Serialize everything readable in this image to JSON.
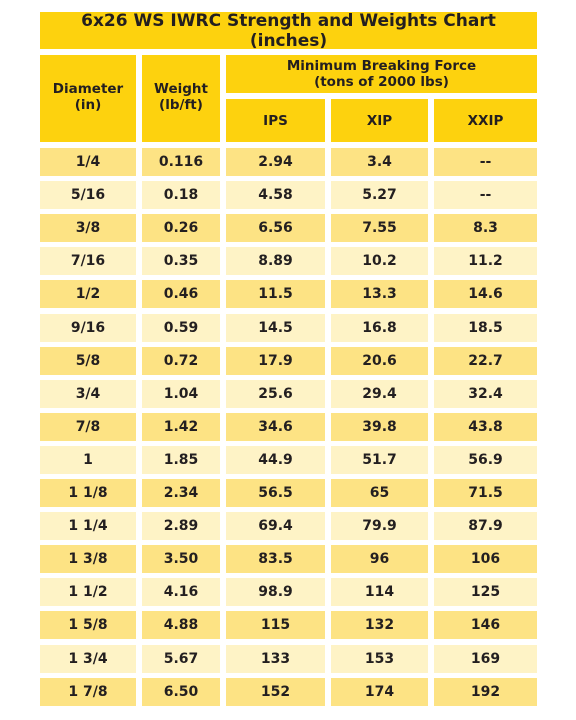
{
  "title": "6x26 WS IWRC Strength and Weights Chart (inches)",
  "table": {
    "header": {
      "diameter": [
        "Diameter",
        "(in)"
      ],
      "weight": [
        "Weight",
        "(lb/ft)"
      ],
      "force": [
        "Minimum Breaking Force",
        "(tons of 2000 lbs)"
      ],
      "grades": [
        "IPS",
        "XIP",
        "XXIP"
      ]
    },
    "rows": [
      [
        "1/4",
        "0.116",
        "2.94",
        "3.4",
        "--"
      ],
      [
        "5/16",
        "0.18",
        "4.58",
        "5.27",
        "--"
      ],
      [
        "3/8",
        "0.26",
        "6.56",
        "7.55",
        "8.3"
      ],
      [
        "7/16",
        "0.35",
        "8.89",
        "10.2",
        "11.2"
      ],
      [
        "1/2",
        "0.46",
        "11.5",
        "13.3",
        "14.6"
      ],
      [
        "9/16",
        "0.59",
        "14.5",
        "16.8",
        "18.5"
      ],
      [
        "5/8",
        "0.72",
        "17.9",
        "20.6",
        "22.7"
      ],
      [
        "3/4",
        "1.04",
        "25.6",
        "29.4",
        "32.4"
      ],
      [
        "7/8",
        "1.42",
        "34.6",
        "39.8",
        "43.8"
      ],
      [
        "1",
        "1.85",
        "44.9",
        "51.7",
        "56.9"
      ],
      [
        "1 1/8",
        "2.34",
        "56.5",
        "65",
        "71.5"
      ],
      [
        "1 1/4",
        "2.89",
        "69.4",
        "79.9",
        "87.9"
      ],
      [
        "1 3/8",
        "3.50",
        "83.5",
        "96",
        "106"
      ],
      [
        "1 1/2",
        "4.16",
        "98.9",
        "114",
        "125"
      ],
      [
        "1 5/8",
        "4.88",
        "115",
        "132",
        "146"
      ],
      [
        "1 3/4",
        "5.67",
        "133",
        "153",
        "169"
      ],
      [
        "1 7/8",
        "6.50",
        "152",
        "174",
        "192"
      ]
    ]
  }
}
